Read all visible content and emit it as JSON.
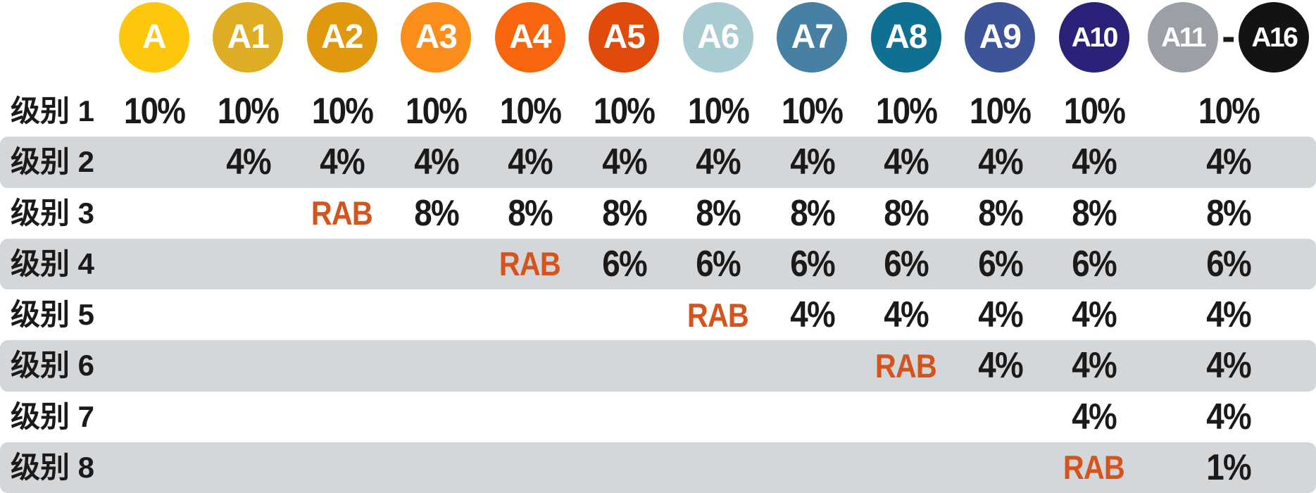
{
  "title_note": "rating-level percentage table",
  "colors": {
    "stripe": "#D4D7D9",
    "rab": "#D5531D",
    "text": "#1C1A19",
    "circle_text": "#FFFFFF",
    "background": "#FFFFFF"
  },
  "header": {
    "circles": [
      {
        "id": "A",
        "label": "A",
        "bg": "#FDC70B"
      },
      {
        "id": "A1",
        "label": "A1",
        "bg": "#DFAD24"
      },
      {
        "id": "A2",
        "label": "A2",
        "bg": "#E0990F"
      },
      {
        "id": "A3",
        "label": "A3",
        "bg": "#FB8D1A"
      },
      {
        "id": "A4",
        "label": "A4",
        "bg": "#F8650F"
      },
      {
        "id": "A5",
        "label": "A5",
        "bg": "#E04A0A"
      },
      {
        "id": "A6",
        "label": "A6",
        "bg": "#A9CCD3"
      },
      {
        "id": "A7",
        "label": "A7",
        "bg": "#4880A3"
      },
      {
        "id": "A8",
        "label": "A8",
        "bg": "#0F7092"
      },
      {
        "id": "A9",
        "label": "A9",
        "bg": "#3D5498"
      },
      {
        "id": "A10",
        "label": "A10",
        "bg": "#2A2278"
      }
    ],
    "merged": {
      "left": {
        "id": "A11",
        "label": "A11",
        "bg": "#9AA0A6"
      },
      "separator": "-",
      "right": {
        "id": "A16",
        "label": "A16",
        "bg": "#151311"
      }
    }
  },
  "rows": [
    {
      "label": "级别 1",
      "cells": [
        "10%",
        "10%",
        "10%",
        "10%",
        "10%",
        "10%",
        "10%",
        "10%",
        "10%",
        "10%",
        "10%",
        "10%"
      ]
    },
    {
      "label": "级别 2",
      "cells": [
        "",
        "4%",
        "4%",
        "4%",
        "4%",
        "4%",
        "4%",
        "4%",
        "4%",
        "4%",
        "4%",
        "4%"
      ]
    },
    {
      "label": "级别 3",
      "cells": [
        "",
        "",
        "RAB",
        "8%",
        "8%",
        "8%",
        "8%",
        "8%",
        "8%",
        "8%",
        "8%",
        "8%"
      ]
    },
    {
      "label": "级别 4",
      "cells": [
        "",
        "",
        "",
        "",
        "RAB",
        "6%",
        "6%",
        "6%",
        "6%",
        "6%",
        "6%",
        "6%"
      ]
    },
    {
      "label": "级别 5",
      "cells": [
        "",
        "",
        "",
        "",
        "",
        "",
        "RAB",
        "4%",
        "4%",
        "4%",
        "4%",
        "4%"
      ]
    },
    {
      "label": "级别 6",
      "cells": [
        "",
        "",
        "",
        "",
        "",
        "",
        "",
        "",
        "RAB",
        "4%",
        "4%",
        "4%"
      ]
    },
    {
      "label": "级别 7",
      "cells": [
        "",
        "",
        "",
        "",
        "",
        "",
        "",
        "",
        "",
        "",
        "4%",
        "4%"
      ]
    },
    {
      "label": "级别 8",
      "cells": [
        "",
        "",
        "",
        "",
        "",
        "",
        "",
        "",
        "",
        "",
        "RAB",
        "1%"
      ]
    }
  ],
  "chart_data": {
    "type": "table",
    "columns": [
      "A",
      "A1",
      "A2",
      "A3",
      "A4",
      "A5",
      "A6",
      "A7",
      "A8",
      "A9",
      "A10",
      "A11 - A16"
    ],
    "row_labels": [
      "级别 1",
      "级别 2",
      "级别 3",
      "级别 4",
      "级别 5",
      "级别 6",
      "级别 7",
      "级别 8"
    ],
    "matrix": [
      [
        "10%",
        "10%",
        "10%",
        "10%",
        "10%",
        "10%",
        "10%",
        "10%",
        "10%",
        "10%",
        "10%",
        "10%"
      ],
      [
        "",
        "4%",
        "4%",
        "4%",
        "4%",
        "4%",
        "4%",
        "4%",
        "4%",
        "4%",
        "4%",
        "4%"
      ],
      [
        "",
        "",
        "RAB",
        "8%",
        "8%",
        "8%",
        "8%",
        "8%",
        "8%",
        "8%",
        "8%",
        "8%"
      ],
      [
        "",
        "",
        "",
        "",
        "RAB",
        "6%",
        "6%",
        "6%",
        "6%",
        "6%",
        "6%",
        "6%"
      ],
      [
        "",
        "",
        "",
        "",
        "",
        "",
        "RAB",
        "4%",
        "4%",
        "4%",
        "4%",
        "4%"
      ],
      [
        "",
        "",
        "",
        "",
        "",
        "",
        "",
        "",
        "RAB",
        "4%",
        "4%",
        "4%"
      ],
      [
        "",
        "",
        "",
        "",
        "",
        "",
        "",
        "",
        "",
        "",
        "4%",
        "4%"
      ],
      [
        "",
        "",
        "",
        "",
        "",
        "",
        "",
        "",
        "",
        "",
        "RAB",
        "1%"
      ]
    ]
  }
}
